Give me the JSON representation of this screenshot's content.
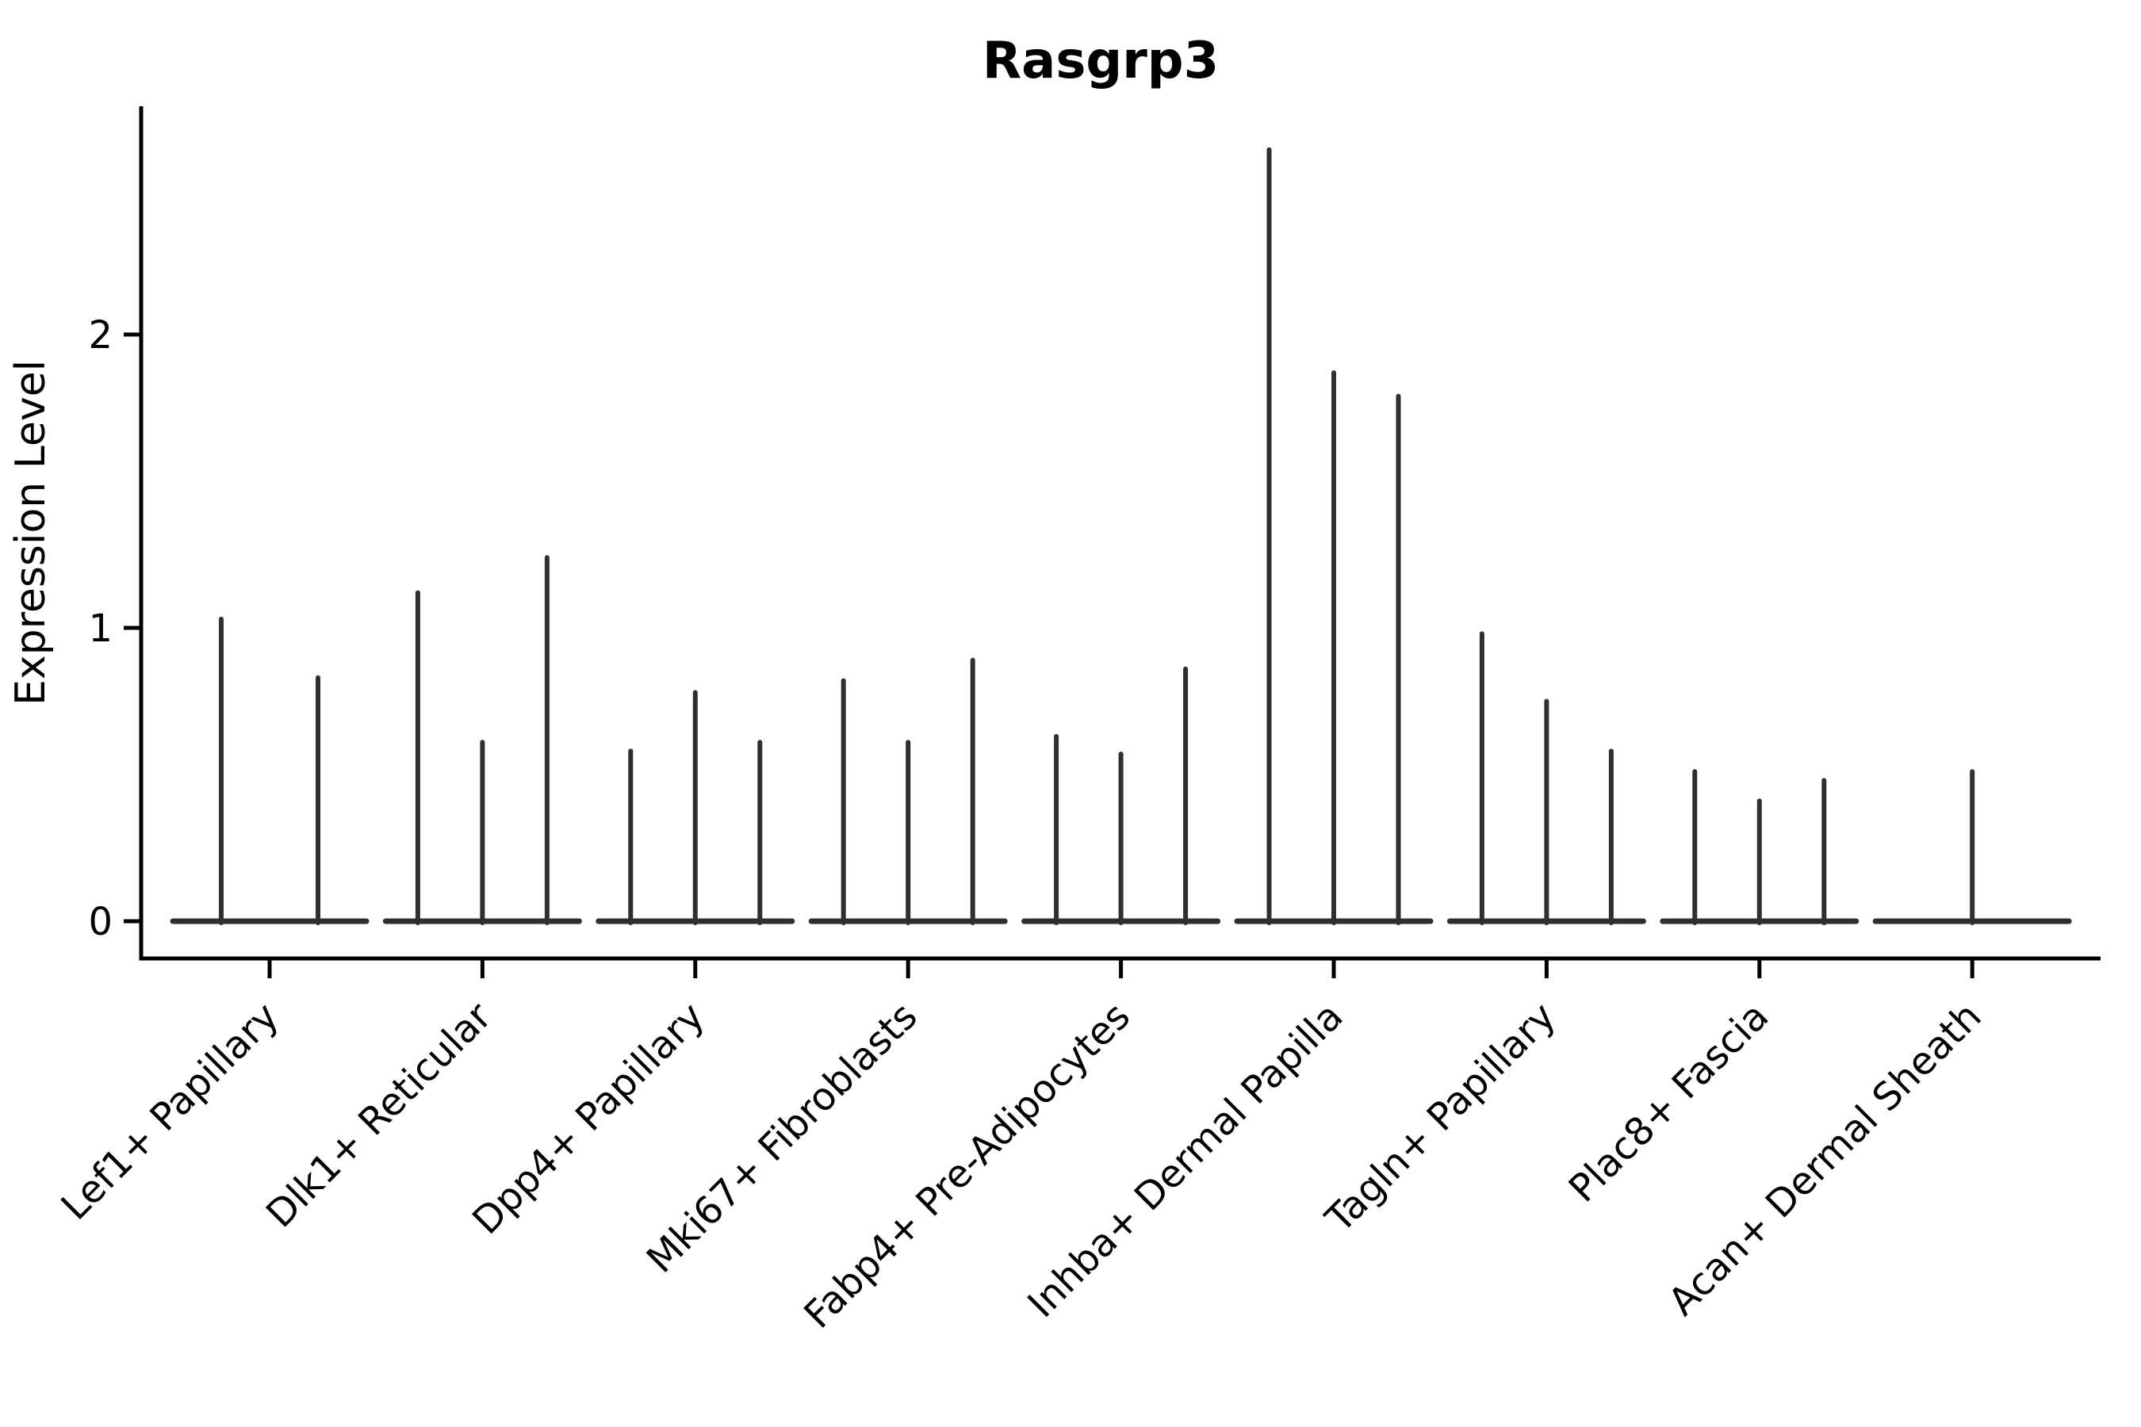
{
  "chart_data": {
    "type": "violin",
    "style": "thin-spike-violins",
    "title": "Rasgrp3",
    "ylabel": "Expression Level",
    "xlabel": "",
    "ylim": [
      0,
      2.77
    ],
    "yticks": [
      0,
      1,
      2
    ],
    "grid": false,
    "legend": "none",
    "categories": [
      "Lef1+ Papillary",
      "Dlk1+ Reticular",
      "Dpp4+ Papillary",
      "Mki67+ Fibroblasts",
      "Fabp4+ Pre-Adipocytes",
      "Inhba+ Dermal Papilla",
      "Tagln+ Papillary",
      "Plac8+ Fascia",
      "Acan+ Dermal Sheath"
    ],
    "series": [
      {
        "category": "Lef1+ Papillary",
        "spike_max_values": [
          1.03,
          0.83
        ]
      },
      {
        "category": "Dlk1+ Reticular",
        "spike_max_values": [
          1.12,
          0.61,
          1.24
        ]
      },
      {
        "category": "Dpp4+ Papillary",
        "spike_max_values": [
          0.58,
          0.78,
          0.61
        ]
      },
      {
        "category": "Mki67+ Fibroblasts",
        "spike_max_values": [
          0.82,
          0.61,
          0.89
        ]
      },
      {
        "category": "Fabp4+ Pre-Adipocytes",
        "spike_max_values": [
          0.63,
          0.57,
          0.86
        ]
      },
      {
        "category": "Inhba+ Dermal Papilla",
        "spike_max_values": [
          2.63,
          1.87,
          1.79
        ]
      },
      {
        "category": "Tagln+ Papillary",
        "spike_max_values": [
          0.98,
          0.75,
          0.58
        ]
      },
      {
        "category": "Plac8+ Fascia",
        "spike_max_values": [
          0.51,
          0.41,
          0.48
        ]
      },
      {
        "category": "Acan+ Dermal Sheath",
        "spike_max_values": [
          0.51
        ]
      }
    ],
    "colors": {
      "violin": "#2f2f2f",
      "axis": "#000000",
      "text": "#000000",
      "background": "#ffffff"
    }
  }
}
